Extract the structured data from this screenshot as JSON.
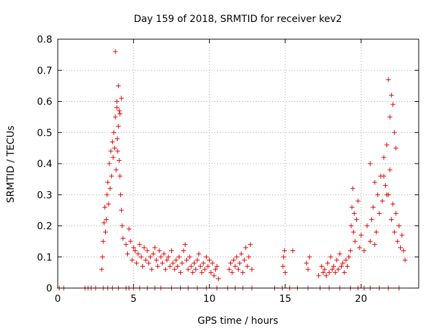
{
  "chart_data": {
    "type": "scatter",
    "title": "Day 159 of 2018, SRMTID for receiver kev2",
    "xlabel": "GPS time / hours",
    "ylabel": "SRMTID / TECUs",
    "xlim": [
      0,
      23.8
    ],
    "ylim": [
      0,
      0.8
    ],
    "xticks": [
      0,
      5,
      10,
      15,
      20
    ],
    "xtick_labels": [
      "0",
      "5",
      "10",
      "15",
      "20"
    ],
    "yticks": [
      0,
      0.1,
      0.2,
      0.3,
      0.4,
      0.5,
      0.6,
      0.7,
      0.8
    ],
    "ytick_labels": [
      "0",
      "0.1",
      "0.2",
      "0.3",
      "0.4",
      "0.5",
      "0.6",
      "0.7",
      "0.8"
    ],
    "grid": true,
    "marker": "+",
    "series": [
      {
        "name": "SRMTID",
        "color": "#e00000",
        "x": [
          0.1,
          0.4,
          1.8,
          2.0,
          2.2,
          2.5,
          3.0,
          3.3,
          3.6,
          4.0,
          4.5,
          4.7,
          5.0,
          5.4,
          5.9,
          6.4,
          6.8,
          7.5,
          8.1,
          8.6,
          9.2,
          9.8,
          10.5,
          11.2,
          11.7,
          12.2,
          12.8,
          14.3,
          14.8,
          15.3,
          15.8,
          16.5,
          17.3,
          17.9,
          18.6,
          19.3,
          19.8,
          20.2,
          20.6,
          21.2,
          21.8,
          22.5,
          2.9,
          2.95,
          3.0,
          3.05,
          3.1,
          3.15,
          3.2,
          3.25,
          3.3,
          3.35,
          3.4,
          3.45,
          3.5,
          3.55,
          3.6,
          3.65,
          3.7,
          3.75,
          3.8,
          3.85,
          3.9,
          3.92,
          3.95,
          4.0,
          4.05,
          4.1,
          4.15,
          4.2,
          4.25,
          4.3,
          4.5,
          4.6,
          4.7,
          4.8,
          4.9,
          5.0,
          5.1,
          5.2,
          5.3,
          5.4,
          5.5,
          5.6,
          5.7,
          5.8,
          5.9,
          6.0,
          6.1,
          6.2,
          6.3,
          6.4,
          6.5,
          6.6,
          6.7,
          6.8,
          6.9,
          7.0,
          7.1,
          7.2,
          7.3,
          7.4,
          7.5,
          7.6,
          7.7,
          7.8,
          7.9,
          8.0,
          8.1,
          8.2,
          8.3,
          8.4,
          8.5,
          8.6,
          8.7,
          8.8,
          8.9,
          9.0,
          9.1,
          9.2,
          9.3,
          9.4,
          9.5,
          9.6,
          9.7,
          9.8,
          9.9,
          10.0,
          10.1,
          10.2,
          10.3,
          10.4,
          10.5,
          10.6,
          11.3,
          11.4,
          11.5,
          11.6,
          11.7,
          11.8,
          11.9,
          12.0,
          12.1,
          12.2,
          12.3,
          12.4,
          12.5,
          12.6,
          12.7,
          12.8,
          14.85,
          14.9,
          14.95,
          15.0,
          15.5,
          16.4,
          16.5,
          16.6,
          17.2,
          17.4,
          17.5,
          17.6,
          17.7,
          17.8,
          17.9,
          18.0,
          18.1,
          18.2,
          18.3,
          18.4,
          18.5,
          18.6,
          18.7,
          18.8,
          18.9,
          19.0,
          19.1,
          19.2,
          19.3,
          19.35,
          19.4,
          19.45,
          19.5,
          19.55,
          19.6,
          19.7,
          19.8,
          19.9,
          20.0,
          20.2,
          20.4,
          20.6,
          20.7,
          20.8,
          20.9,
          21.0,
          21.1,
          21.2,
          21.3,
          21.4,
          21.5,
          21.6,
          21.7,
          21.8,
          21.9,
          22.0,
          22.1,
          22.2,
          22.3,
          22.4,
          22.5,
          22.6,
          22.7,
          22.8,
          22.9,
          3.9,
          4.0,
          4.05,
          4.1,
          4.2,
          21.9,
          22.0,
          22.1,
          22.2,
          22.3,
          21.5,
          21.7,
          20.6,
          20.9
        ],
        "y": [
          0,
          0,
          0,
          0,
          0,
          0,
          0,
          0,
          0,
          0,
          0,
          0,
          0,
          0,
          0,
          0,
          0,
          0,
          0,
          0,
          0,
          0,
          0,
          0,
          0,
          0,
          0,
          0,
          0,
          0,
          0,
          0,
          0,
          0,
          0,
          0,
          0,
          0,
          0,
          0,
          0,
          0,
          0.06,
          0.1,
          0.15,
          0.21,
          0.26,
          0.18,
          0.22,
          0.3,
          0.34,
          0.27,
          0.4,
          0.32,
          0.44,
          0.36,
          0.47,
          0.42,
          0.5,
          0.45,
          0.55,
          0.38,
          0.6,
          0.48,
          0.44,
          0.52,
          0.41,
          0.36,
          0.3,
          0.25,
          0.2,
          0.16,
          0.14,
          0.11,
          0.19,
          0.15,
          0.09,
          0.13,
          0.12,
          0.08,
          0.11,
          0.14,
          0.1,
          0.07,
          0.13,
          0.09,
          0.12,
          0.08,
          0.1,
          0.06,
          0.11,
          0.13,
          0.09,
          0.07,
          0.12,
          0.1,
          0.08,
          0.11,
          0.06,
          0.09,
          0.1,
          0.07,
          0.12,
          0.08,
          0.06,
          0.09,
          0.07,
          0.1,
          0.05,
          0.08,
          0.12,
          0.14,
          0.09,
          0.06,
          0.1,
          0.07,
          0.05,
          0.08,
          0.06,
          0.09,
          0.11,
          0.07,
          0.05,
          0.08,
          0.06,
          0.1,
          0.07,
          0.09,
          0.05,
          0.08,
          0.04,
          0.06,
          0.07,
          0.03,
          0.06,
          0.08,
          0.05,
          0.09,
          0.07,
          0.1,
          0.06,
          0.08,
          0.11,
          0.05,
          0.09,
          0.13,
          0.07,
          0.1,
          0.14,
          0.06,
          0.07,
          0.1,
          0.12,
          0.05,
          0.12,
          0.08,
          0.06,
          0.1,
          0.04,
          0.07,
          0.05,
          0.06,
          0.04,
          0.08,
          0.05,
          0.1,
          0.06,
          0.07,
          0.05,
          0.09,
          0.06,
          0.11,
          0.07,
          0.08,
          0.05,
          0.09,
          0.07,
          0.1,
          0.12,
          0.2,
          0.26,
          0.32,
          0.18,
          0.24,
          0.15,
          0.22,
          0.28,
          0.13,
          0.17,
          0.12,
          0.2,
          0.15,
          0.22,
          0.26,
          0.14,
          0.18,
          0.3,
          0.24,
          0.36,
          0.28,
          0.42,
          0.33,
          0.46,
          0.3,
          0.38,
          0.22,
          0.27,
          0.18,
          0.24,
          0.15,
          0.2,
          0.13,
          0.17,
          0.12,
          0.09,
          0.58,
          0.65,
          0.57,
          0.56,
          0.61,
          0.55,
          0.62,
          0.59,
          0.5,
          0.45,
          0.36,
          0.3,
          0.4,
          0.34
        ]
      }
    ],
    "highlights": [
      {
        "x": 3.8,
        "y": 0.76
      },
      {
        "x": 21.8,
        "y": 0.67
      }
    ]
  }
}
